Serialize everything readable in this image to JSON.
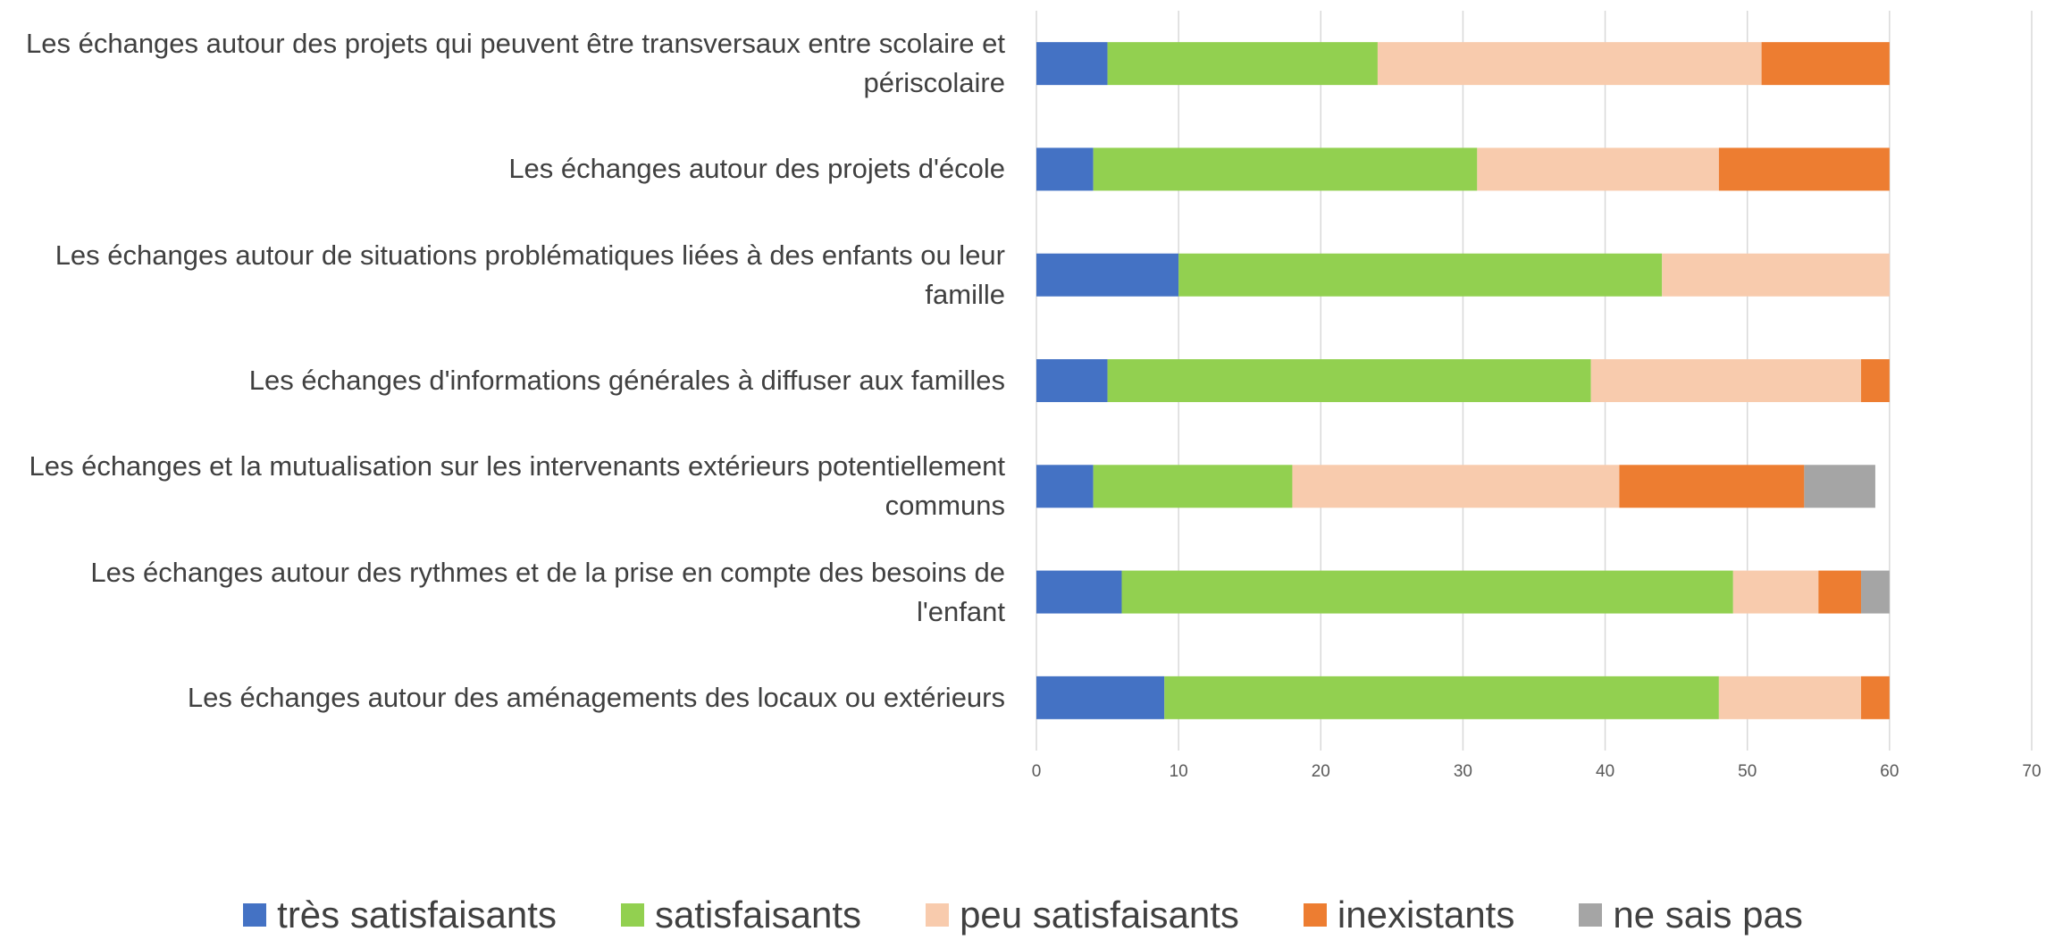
{
  "chart_data": {
    "type": "stacked-bar-horizontal",
    "categories": [
      "Les échanges autour des projets qui peuvent être transversaux entre scolaire et périscolaire",
      "Les échanges autour des projets d'école",
      "Les échanges autour de situations problématiques liées à des enfants ou leur famille",
      "Les échanges d'informations générales à diffuser aux familles",
      "Les échanges et la mutualisation sur les intervenants extérieurs potentiellement communs",
      "Les échanges autour des rythmes et de la prise en compte des besoins de l'enfant",
      "Les échanges autour des aménagements des locaux ou extérieurs"
    ],
    "series": [
      {
        "name": "très satisfaisants",
        "color": "#4472c4",
        "values": [
          5,
          4,
          10,
          5,
          4,
          6,
          9
        ]
      },
      {
        "name": "satisfaisants",
        "color": "#92d050",
        "values": [
          19,
          27,
          34,
          34,
          14,
          43,
          39
        ]
      },
      {
        "name": "peu satisfaisants",
        "color": "#f8cbad",
        "values": [
          27,
          17,
          16,
          19,
          23,
          6,
          10
        ]
      },
      {
        "name": "inexistants",
        "color": "#ed7d31",
        "values": [
          9,
          12,
          0,
          2,
          13,
          3,
          2
        ]
      },
      {
        "name": "ne sais pas",
        "color": "#a5a5a5",
        "values": [
          0,
          0,
          0,
          0,
          5,
          2,
          0
        ]
      }
    ],
    "xlim": [
      0,
      70
    ],
    "xticks": [
      0,
      10,
      20,
      30,
      40,
      50,
      60,
      70
    ],
    "grid": true,
    "legend": "bottom"
  }
}
